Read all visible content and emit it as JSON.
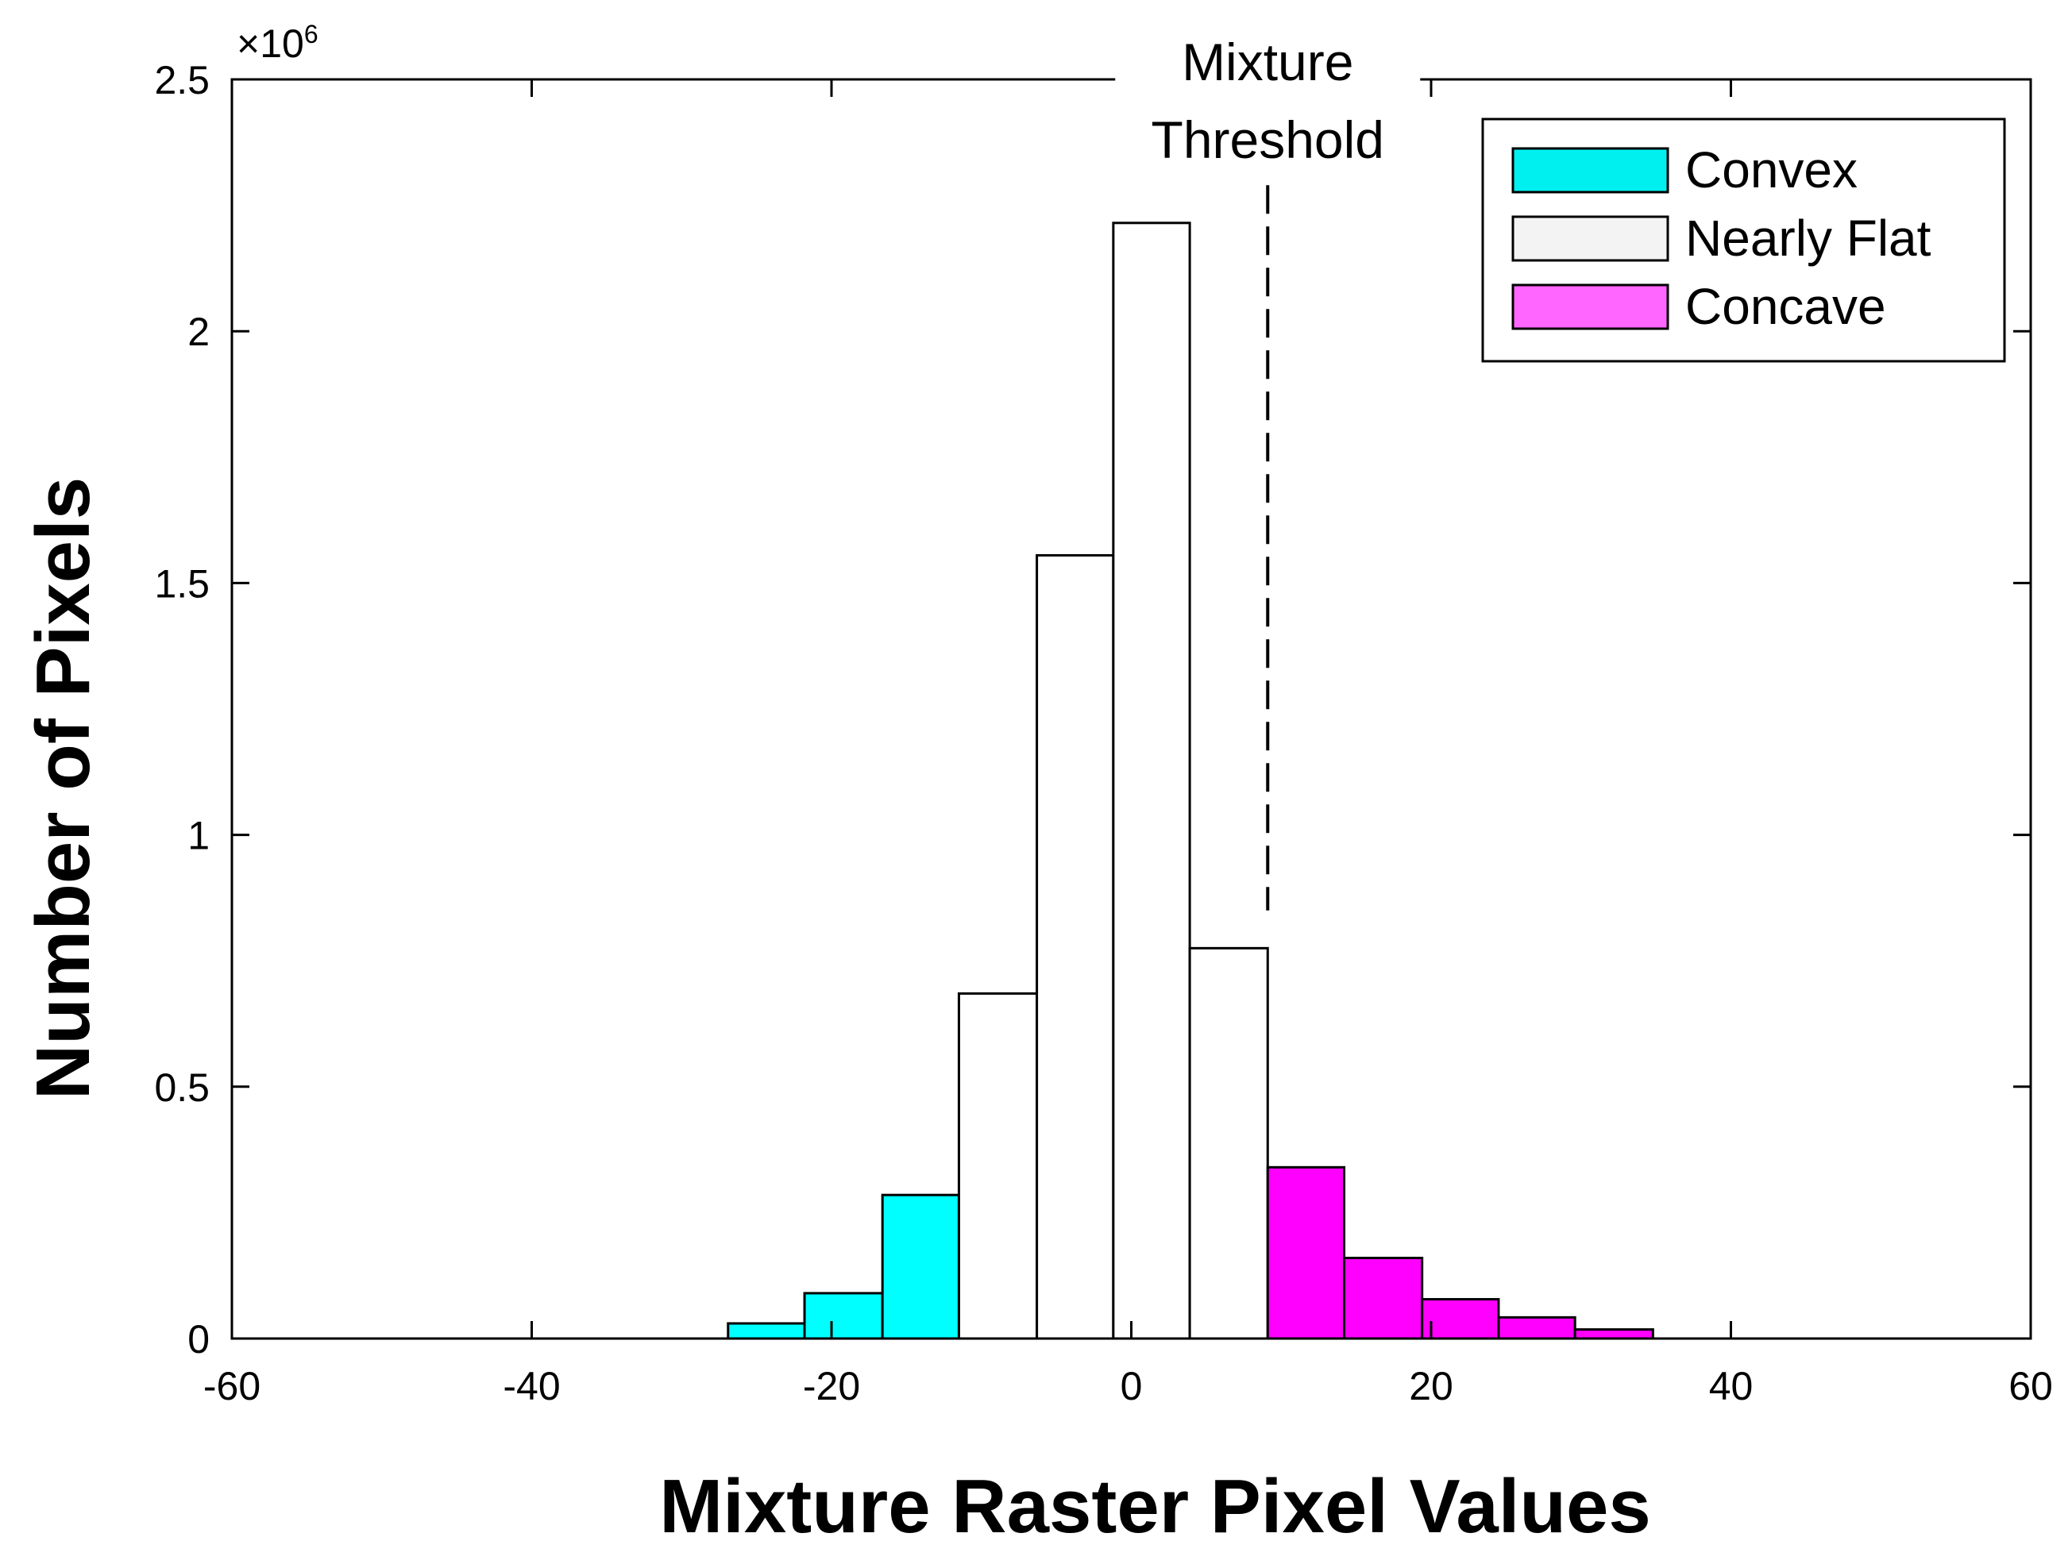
{
  "chart_data": {
    "type": "bar",
    "title": "",
    "xlabel": "Mixture Raster Pixel Values",
    "ylabel": "Number of Pixels",
    "xlim": [
      -60,
      60
    ],
    "ylim": [
      0,
      2500000
    ],
    "x_ticks": [
      -60,
      -40,
      -20,
      0,
      20,
      40,
      60
    ],
    "x_tick_labels": [
      "-60",
      "-40",
      "-20",
      "0",
      "20",
      "40",
      "60"
    ],
    "y_ticks": [
      0,
      500000,
      1000000,
      1500000,
      2000000,
      2500000
    ],
    "y_tick_labels": [
      "0",
      "0.5",
      "1",
      "1.5",
      "2",
      "2.5"
    ],
    "y_exponent_label": "×10",
    "y_exponent_power": "6",
    "grid": false,
    "legend_position": "top-right",
    "colors": {
      "convex": "#00ffff",
      "nearly_flat": "#ffffff",
      "concave": "#ff00ff",
      "edge": "#000000"
    },
    "series": [
      {
        "name": "Convex",
        "legend_color": "#00f0f0",
        "bins": [
          {
            "start": -26.9,
            "end": -21.8,
            "value": 30000
          },
          {
            "start": -21.8,
            "end": -16.6,
            "value": 90000
          },
          {
            "start": -16.6,
            "end": -11.5,
            "value": 285000
          }
        ]
      },
      {
        "name": "Nearly Flat",
        "legend_color": "#f3f3f3",
        "bins": [
          {
            "start": -11.5,
            "end": -6.3,
            "value": 685000
          },
          {
            "start": -6.3,
            "end": -1.2,
            "value": 1555000
          },
          {
            "start": -1.2,
            "end": 3.9,
            "value": 2215000
          },
          {
            "start": 3.9,
            "end": 9.1,
            "value": 775000
          }
        ]
      },
      {
        "name": "Concave",
        "legend_color": "#ff66ff",
        "bins": [
          {
            "start": 9.1,
            "end": 14.2,
            "value": 340000
          },
          {
            "start": 14.2,
            "end": 19.4,
            "value": 160000
          },
          {
            "start": 19.4,
            "end": 24.5,
            "value": 78000
          },
          {
            "start": 24.5,
            "end": 29.6,
            "value": 42000
          },
          {
            "start": 29.6,
            "end": 34.8,
            "value": 18000
          }
        ]
      }
    ],
    "annotations": [
      {
        "type": "vline",
        "x": 9.1,
        "style": "dashed",
        "y_from": 850000,
        "y_to": 2290000
      },
      {
        "lines": [
          "Mixture",
          "Threshold"
        ]
      }
    ]
  }
}
